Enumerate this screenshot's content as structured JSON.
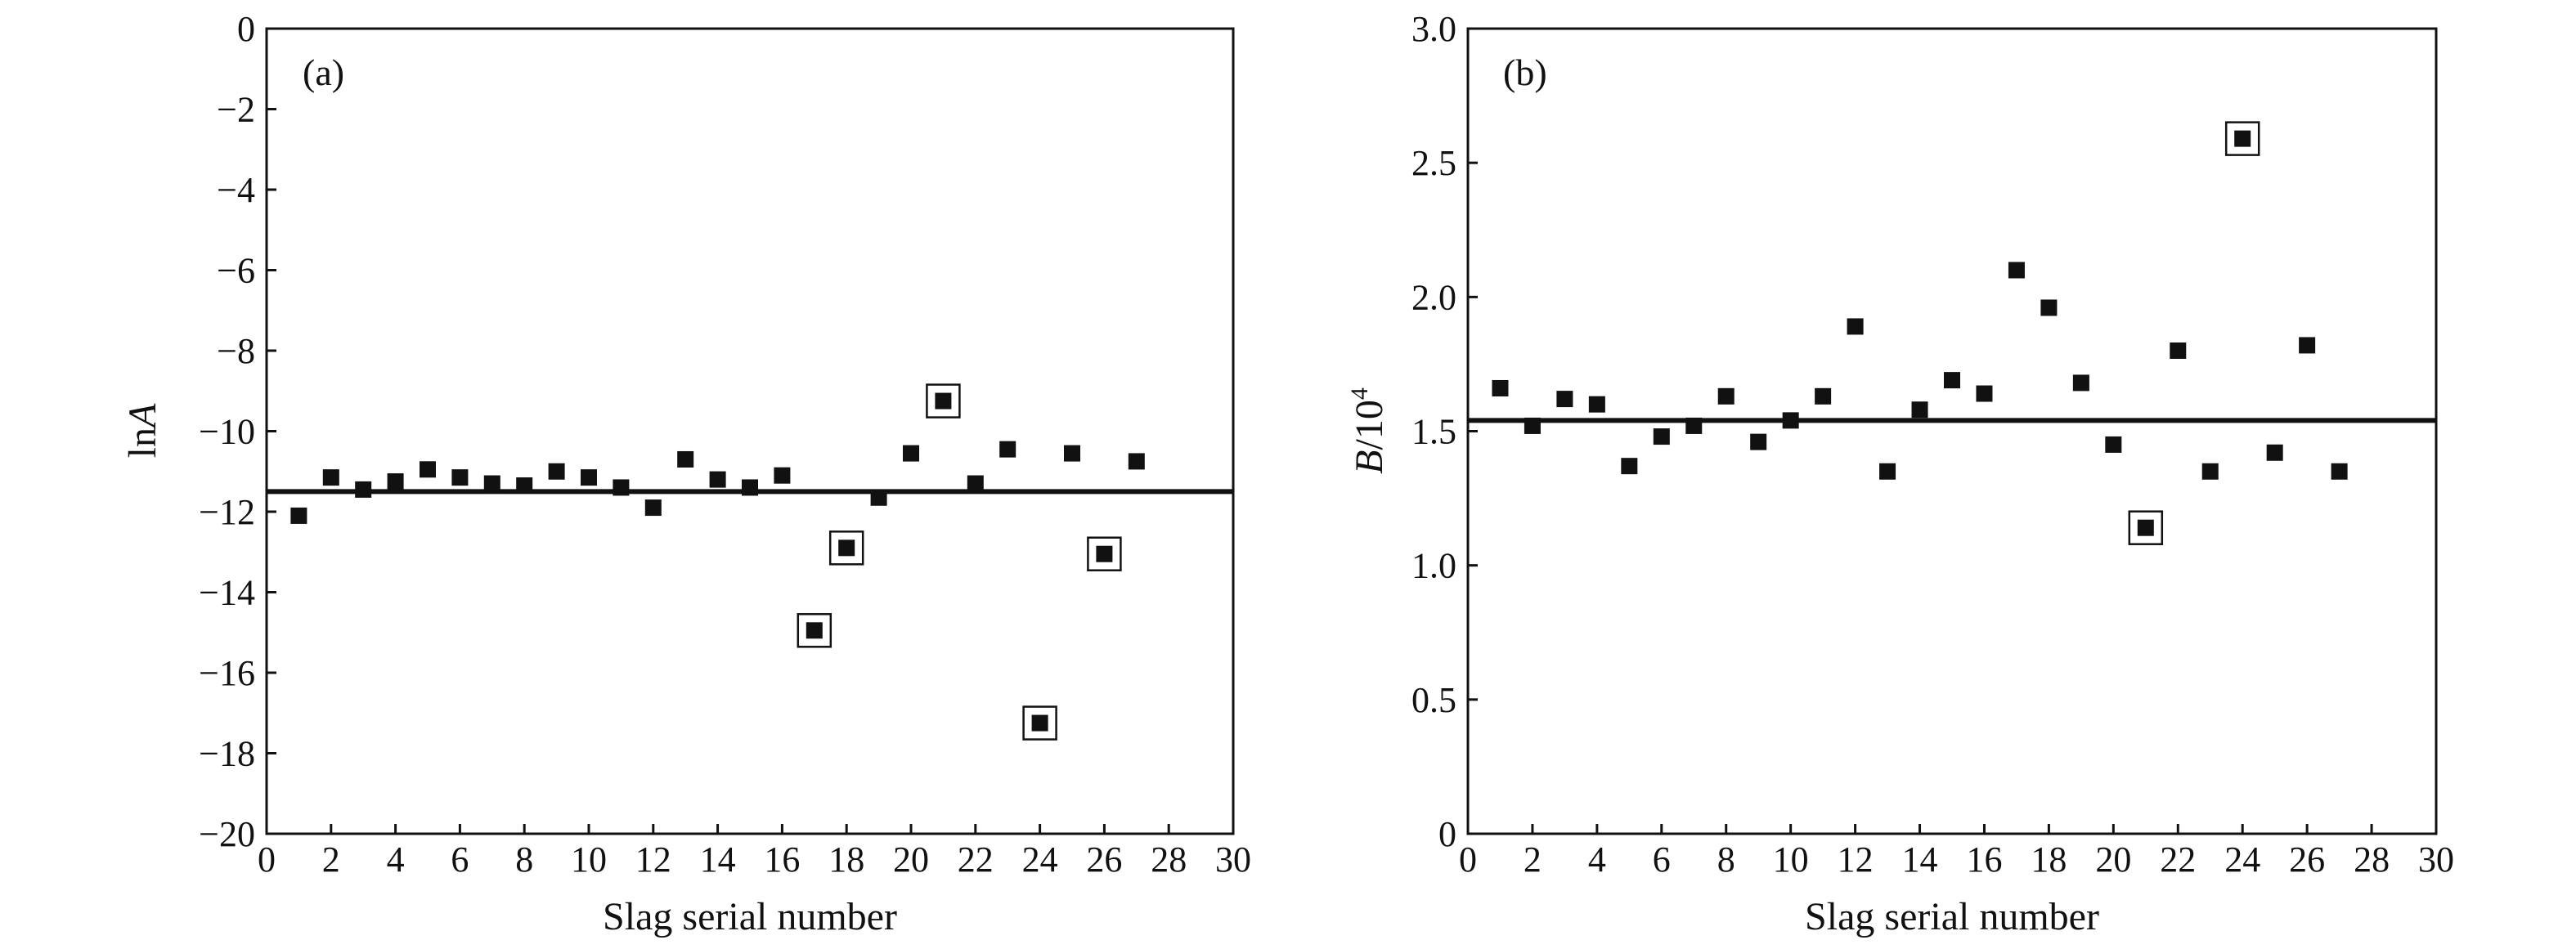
{
  "chart_data": [
    {
      "type": "scatter",
      "panel_label": "(a)",
      "xlabel": "Slag serial number",
      "ylabel_main": "ln",
      "ylabel_italic": "A",
      "xlim": [
        0,
        30
      ],
      "ylim": [
        -20,
        0
      ],
      "xticks": [
        0,
        2,
        4,
        6,
        8,
        10,
        12,
        14,
        16,
        18,
        20,
        22,
        24,
        26,
        28,
        30
      ],
      "yticks": [
        0,
        -2,
        -4,
        -6,
        -8,
        -10,
        -12,
        -14,
        -16,
        -18,
        -20
      ],
      "ytick_labels": [
        "0",
        "−2",
        "−4",
        "−6",
        "−8",
        "−10",
        "−12",
        "−14",
        "−16",
        "−18",
        "−20"
      ],
      "mean_line": -11.5,
      "grid": false,
      "x": [
        1,
        2,
        3,
        4,
        5,
        6,
        7,
        8,
        9,
        10,
        11,
        12,
        13,
        14,
        15,
        16,
        17,
        18,
        19,
        20,
        21,
        22,
        23,
        24,
        25,
        26,
        27
      ],
      "y": [
        -12.1,
        -11.15,
        -11.45,
        -11.25,
        -10.95,
        -11.15,
        -11.3,
        -11.35,
        -11.0,
        -11.15,
        -11.4,
        -11.9,
        -10.7,
        -11.2,
        -11.4,
        -11.1,
        -14.95,
        -12.9,
        -11.65,
        -10.55,
        -9.25,
        -11.3,
        -10.45,
        -17.25,
        -10.55,
        -13.05,
        -10.75
      ],
      "outliers_boxed": [
        17,
        18,
        21,
        24,
        26
      ]
    },
    {
      "type": "scatter",
      "panel_label": "(b)",
      "xlabel": "Slag serial number",
      "ylabel_main": "/10",
      "ylabel_italic": "B",
      "ylabel_sup": "4",
      "xlim": [
        0,
        30
      ],
      "ylim": [
        0,
        3.0
      ],
      "xticks": [
        0,
        2,
        4,
        6,
        8,
        10,
        12,
        14,
        16,
        18,
        20,
        22,
        24,
        26,
        28,
        30
      ],
      "yticks": [
        0,
        0.5,
        1.0,
        1.5,
        2.0,
        2.5,
        3.0
      ],
      "ytick_labels": [
        "0",
        "0.5",
        "1.0",
        "1.5",
        "2.0",
        "2.5",
        "3.0"
      ],
      "mean_line": 1.54,
      "grid": false,
      "x": [
        1,
        2,
        3,
        4,
        5,
        6,
        7,
        8,
        9,
        10,
        11,
        12,
        13,
        14,
        15,
        16,
        17,
        18,
        19,
        20,
        21,
        22,
        23,
        24,
        25,
        26,
        27
      ],
      "y": [
        1.66,
        1.52,
        1.62,
        1.6,
        1.37,
        1.48,
        1.52,
        1.63,
        1.46,
        1.54,
        1.63,
        1.89,
        1.35,
        1.58,
        1.69,
        1.64,
        2.1,
        1.96,
        1.68,
        1.45,
        1.14,
        1.8,
        1.35,
        2.59,
        1.42,
        1.82,
        1.35
      ],
      "outliers_boxed": [
        21,
        24
      ]
    }
  ]
}
